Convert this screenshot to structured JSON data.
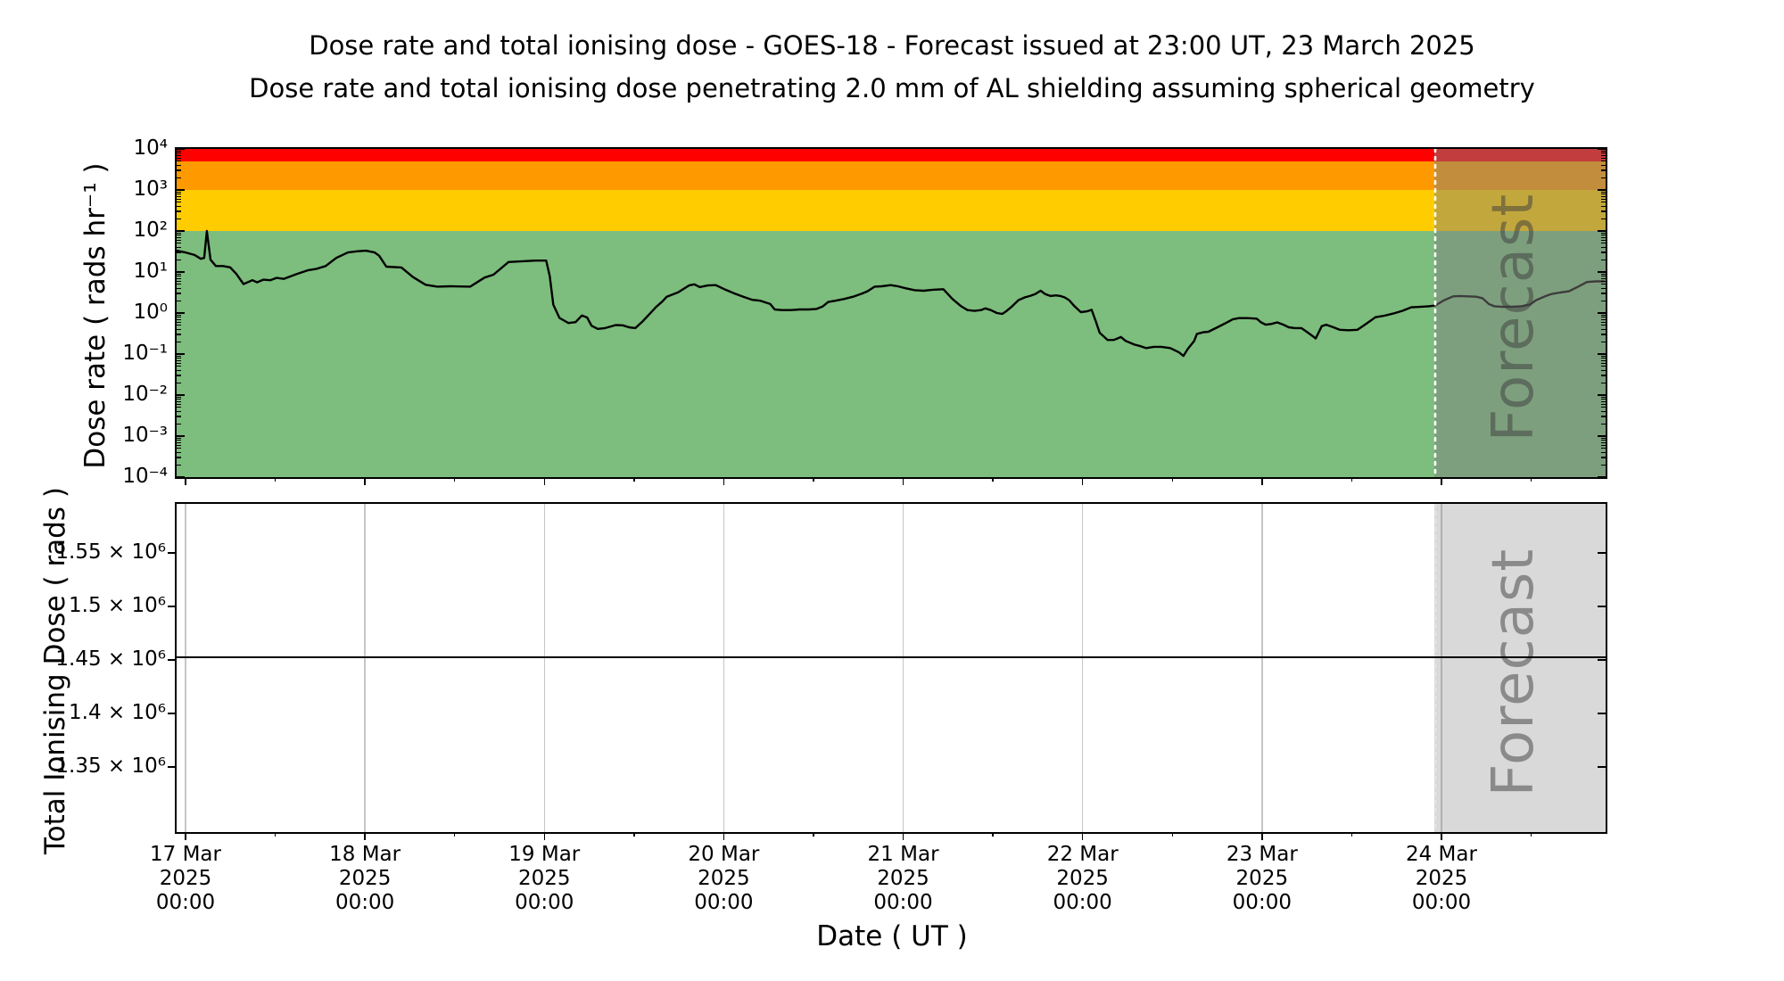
{
  "header": {
    "title": "Dose rate and total ionising dose - GOES-18 - Forecast issued at 23:00 UT, 23 March 2025",
    "subtitle": "Dose rate and total ionising dose penetrating 2.0 mm of AL shielding assuming spherical geometry"
  },
  "top_panel": {
    "ylabel": "Dose rate ( rads hr⁻¹ )",
    "ytick_labels": [
      "10⁴",
      "10³",
      "10²",
      "10¹",
      "10⁰",
      "10⁻¹",
      "10⁻²",
      "10⁻³",
      "10⁻⁴"
    ],
    "ytick_exponents": [
      4,
      3,
      2,
      1,
      0,
      -1,
      -2,
      -3,
      -4
    ],
    "forecast_label": "Forecast",
    "bands": [
      {
        "name": "red-alert-band",
        "color": "#ff0000",
        "from": 5000,
        "to": 10000
      },
      {
        "name": "orange-warning-band",
        "color": "#ff9900",
        "from": 1000,
        "to": 5000
      },
      {
        "name": "yellow-caution-band",
        "color": "#ffcc00",
        "from": 100,
        "to": 1000
      },
      {
        "name": "green-safe-band",
        "color": "#7dbd7d",
        "from": 0.0001,
        "to": 100
      }
    ]
  },
  "bottom_panel": {
    "ylabel": "Total Ionising Dose ( rads )",
    "ytick_labels": [
      "1.55 × 10⁶",
      "1.5 × 10⁶",
      "1.45 × 10⁶",
      "1.4 × 10⁶",
      "1.35 × 10⁶"
    ],
    "ytick_values": [
      1550000,
      1500000,
      1450000,
      1400000,
      1350000
    ],
    "forecast_label": "Forecast"
  },
  "x_axis": {
    "label": "Date ( UT )",
    "tick_days": [
      "17 Mar",
      "18 Mar",
      "19 Mar",
      "20 Mar",
      "21 Mar",
      "22 Mar",
      "23 Mar",
      "24 Mar"
    ],
    "tick_year": "2025",
    "tick_time": "00:00"
  },
  "colors": {
    "grid": "#c6c6c6",
    "forecast_overlay_top": "rgba(128,128,128,0.48)",
    "forecast_overlay_bottom": "rgba(128,128,128,0.30)",
    "forecast_text": "rgba(60,60,60,0.5)",
    "dotted_boundary": "#ffffff",
    "line": "#000000"
  },
  "chart_data": [
    {
      "type": "line",
      "title": "Dose rate",
      "ylabel": "Dose rate ( rads hr⁻¹ )",
      "yscale": "log",
      "ylim": [
        0.0001,
        10000
      ],
      "x_unit": "days since 17 Mar 2025 00:00 UT",
      "x_range_days": [
        -0.05,
        7.905
      ],
      "forecast_start_day": 6.958,
      "forecast_start_label": "23 Mar 2025 23:00 UT",
      "hazard_bands": [
        {
          "color": "red",
          "range": [
            5000,
            10000
          ]
        },
        {
          "color": "orange",
          "range": [
            1000,
            5000
          ]
        },
        {
          "color": "yellow",
          "range": [
            100,
            1000
          ]
        },
        {
          "color": "green",
          "range": [
            0.0001,
            100
          ]
        }
      ],
      "series": [
        {
          "name": "dose_rate_rads_per_hr",
          "points_day_value": [
            [
              -0.05,
              33
            ],
            [
              0,
              30
            ],
            [
              0.05,
              26
            ],
            [
              0.085,
              21
            ],
            [
              0.104,
              22
            ],
            [
              0.119,
              100
            ],
            [
              0.139,
              20
            ],
            [
              0.169,
              14
            ],
            [
              0.209,
              14
            ],
            [
              0.249,
              13
            ],
            [
              0.283,
              9
            ],
            [
              0.323,
              5.1
            ],
            [
              0.373,
              6.3
            ],
            [
              0.398,
              5.6
            ],
            [
              0.433,
              6.5
            ],
            [
              0.472,
              6.3
            ],
            [
              0.507,
              7.2
            ],
            [
              0.547,
              6.8
            ],
            [
              0.622,
              9
            ],
            [
              0.681,
              11
            ],
            [
              0.731,
              12
            ],
            [
              0.781,
              14
            ],
            [
              0.84,
              22
            ],
            [
              0.905,
              30
            ],
            [
              0.955,
              32
            ],
            [
              1.005,
              33
            ],
            [
              1.054,
              30
            ],
            [
              1.079,
              25
            ],
            [
              1.119,
              13.5
            ],
            [
              1.203,
              12.9
            ],
            [
              1.268,
              7.5
            ],
            [
              1.338,
              4.9
            ],
            [
              1.403,
              4.4
            ],
            [
              1.477,
              4.5
            ],
            [
              1.587,
              4.4
            ],
            [
              1.666,
              7.3
            ],
            [
              1.716,
              8.6
            ],
            [
              1.8,
              17.5
            ],
            [
              1.95,
              19
            ],
            [
              2.01,
              19
            ],
            [
              2.03,
              8
            ],
            [
              2.05,
              1.6
            ],
            [
              2.084,
              0.76
            ],
            [
              2.134,
              0.57
            ],
            [
              2.174,
              0.6
            ],
            [
              2.209,
              0.87
            ],
            [
              2.238,
              0.78
            ],
            [
              2.263,
              0.49
            ],
            [
              2.298,
              0.41
            ],
            [
              2.338,
              0.43
            ],
            [
              2.398,
              0.51
            ],
            [
              2.437,
              0.5
            ],
            [
              2.472,
              0.45
            ],
            [
              2.507,
              0.43
            ],
            [
              2.547,
              0.62
            ],
            [
              2.582,
              0.9
            ],
            [
              2.622,
              1.4
            ],
            [
              2.657,
              1.9
            ],
            [
              2.682,
              2.5
            ],
            [
              2.746,
              3.2
            ],
            [
              2.806,
              4.7
            ],
            [
              2.836,
              5
            ],
            [
              2.866,
              4.3
            ],
            [
              2.91,
              4.7
            ],
            [
              2.955,
              4.8
            ],
            [
              3.01,
              3.7
            ],
            [
              3.06,
              3
            ],
            [
              3.109,
              2.5
            ],
            [
              3.159,
              2.1
            ],
            [
              3.204,
              2
            ],
            [
              3.259,
              1.66
            ],
            [
              3.284,
              1.22
            ],
            [
              3.323,
              1.18
            ],
            [
              3.373,
              1.18
            ],
            [
              3.423,
              1.22
            ],
            [
              3.473,
              1.22
            ],
            [
              3.517,
              1.26
            ],
            [
              3.552,
              1.45
            ],
            [
              3.582,
              1.86
            ],
            [
              3.622,
              2
            ],
            [
              3.672,
              2.2
            ],
            [
              3.721,
              2.5
            ],
            [
              3.771,
              3
            ],
            [
              3.801,
              3.4
            ],
            [
              3.841,
              4.4
            ],
            [
              3.881,
              4.5
            ],
            [
              3.93,
              4.8
            ],
            [
              3.97,
              4.5
            ],
            [
              4.015,
              4
            ],
            [
              4.065,
              3.6
            ],
            [
              4.114,
              3.5
            ],
            [
              4.164,
              3.7
            ],
            [
              4.224,
              3.8
            ],
            [
              4.274,
              2.2
            ],
            [
              4.323,
              1.46
            ],
            [
              4.358,
              1.18
            ],
            [
              4.398,
              1.13
            ],
            [
              4.433,
              1.18
            ],
            [
              4.458,
              1.3
            ],
            [
              4.488,
              1.18
            ],
            [
              4.522,
              1
            ],
            [
              4.552,
              0.95
            ],
            [
              4.577,
              1.13
            ],
            [
              4.607,
              1.46
            ],
            [
              4.642,
              2.06
            ],
            [
              4.677,
              2.4
            ],
            [
              4.706,
              2.6
            ],
            [
              4.736,
              2.9
            ],
            [
              4.766,
              3.5
            ],
            [
              4.791,
              2.9
            ],
            [
              4.821,
              2.6
            ],
            [
              4.851,
              2.7
            ],
            [
              4.876,
              2.6
            ],
            [
              4.9,
              2.4
            ],
            [
              4.925,
              2.06
            ],
            [
              4.955,
              1.46
            ],
            [
              4.99,
              1.05
            ],
            [
              5.025,
              1.1
            ],
            [
              5.05,
              1.2
            ],
            [
              5.075,
              0.6
            ],
            [
              5.095,
              0.33
            ],
            [
              5.139,
              0.22
            ],
            [
              5.174,
              0.22
            ],
            [
              5.214,
              0.26
            ],
            [
              5.239,
              0.21
            ],
            [
              5.289,
              0.17
            ],
            [
              5.323,
              0.155
            ],
            [
              5.353,
              0.14
            ],
            [
              5.398,
              0.15
            ],
            [
              5.438,
              0.15
            ],
            [
              5.488,
              0.14
            ],
            [
              5.537,
              0.11
            ],
            [
              5.562,
              0.09
            ],
            [
              5.587,
              0.135
            ],
            [
              5.622,
              0.21
            ],
            [
              5.637,
              0.31
            ],
            [
              5.672,
              0.34
            ],
            [
              5.701,
              0.35
            ],
            [
              5.751,
              0.45
            ],
            [
              5.801,
              0.58
            ],
            [
              5.836,
              0.7
            ],
            [
              5.871,
              0.75
            ],
            [
              5.92,
              0.75
            ],
            [
              5.97,
              0.73
            ],
            [
              5.995,
              0.59
            ],
            [
              6.02,
              0.52
            ],
            [
              6.05,
              0.54
            ],
            [
              6.085,
              0.59
            ],
            [
              6.119,
              0.52
            ],
            [
              6.149,
              0.45
            ],
            [
              6.184,
              0.43
            ],
            [
              6.219,
              0.43
            ],
            [
              6.249,
              0.35
            ],
            [
              6.284,
              0.27
            ],
            [
              6.299,
              0.24
            ],
            [
              6.333,
              0.48
            ],
            [
              6.358,
              0.52
            ],
            [
              6.398,
              0.45
            ],
            [
              6.433,
              0.39
            ],
            [
              6.483,
              0.38
            ],
            [
              6.532,
              0.39
            ],
            [
              6.582,
              0.55
            ],
            [
              6.632,
              0.79
            ],
            [
              6.682,
              0.86
            ],
            [
              6.731,
              0.97
            ],
            [
              6.781,
              1.13
            ],
            [
              6.831,
              1.38
            ],
            [
              6.881,
              1.41
            ],
            [
              6.93,
              1.46
            ],
            [
              6.965,
              1.52
            ],
            [
              7.015,
              2.06
            ],
            [
              7.065,
              2.55
            ],
            [
              7.104,
              2.6
            ],
            [
              7.144,
              2.55
            ],
            [
              7.194,
              2.5
            ],
            [
              7.229,
              2.3
            ],
            [
              7.264,
              1.66
            ],
            [
              7.294,
              1.46
            ],
            [
              7.343,
              1.41
            ],
            [
              7.393,
              1.43
            ],
            [
              7.443,
              1.46
            ],
            [
              7.493,
              1.6
            ],
            [
              7.527,
              2.06
            ],
            [
              7.577,
              2.55
            ],
            [
              7.612,
              2.9
            ],
            [
              7.662,
              3.16
            ],
            [
              7.711,
              3.4
            ],
            [
              7.761,
              4.35
            ],
            [
              7.811,
              5.7
            ],
            [
              7.861,
              5.9
            ],
            [
              7.905,
              5.9
            ]
          ]
        }
      ]
    },
    {
      "type": "line",
      "title": "Total Ionising Dose",
      "ylabel": "Total Ionising Dose ( rads )",
      "yscale": "linear",
      "ylim": [
        1289200,
        1595800
      ],
      "yticks": [
        1350000,
        1400000,
        1450000,
        1500000,
        1550000
      ],
      "x_unit": "days since 17 Mar 2025 00:00 UT",
      "x_range_days": [
        -0.05,
        7.905
      ],
      "forecast_start_day": 6.958,
      "series": [
        {
          "name": "total_ionising_dose_rads",
          "points_day_value": [
            [
              -0.05,
              1452500
            ],
            [
              7.905,
              1452500
            ]
          ]
        }
      ]
    }
  ]
}
